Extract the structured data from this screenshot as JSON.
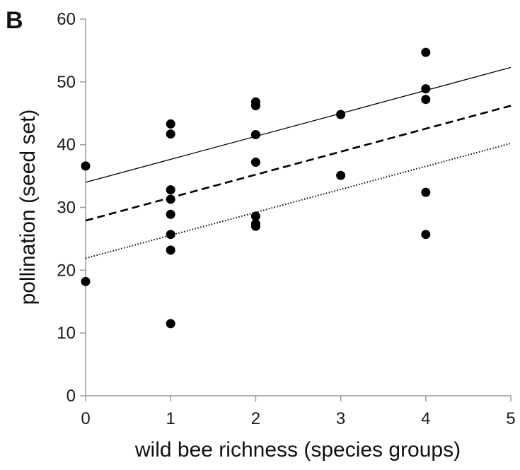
{
  "chart_data": {
    "type": "scatter",
    "panel_label": "B",
    "xlabel": "wild bee richness (species groups)",
    "ylabel": "pollination (seed set)",
    "xlim": [
      0,
      5
    ],
    "ylim": [
      0,
      60
    ],
    "x_ticks": [
      "0",
      "1",
      "2",
      "3",
      "4",
      "5"
    ],
    "y_ticks": [
      "0",
      "10",
      "20",
      "30",
      "40",
      "50",
      "60"
    ],
    "grid": false,
    "point_color": "#000000",
    "points": [
      {
        "x": 0,
        "y": 36.6
      },
      {
        "x": 0,
        "y": 18.2
      },
      {
        "x": 1,
        "y": 43.3
      },
      {
        "x": 1,
        "y": 41.7
      },
      {
        "x": 1,
        "y": 32.8
      },
      {
        "x": 1,
        "y": 31.3
      },
      {
        "x": 1,
        "y": 28.9
      },
      {
        "x": 1,
        "y": 25.7
      },
      {
        "x": 1,
        "y": 23.2
      },
      {
        "x": 1,
        "y": 11.5
      },
      {
        "x": 2,
        "y": 46.8
      },
      {
        "x": 2,
        "y": 46.2
      },
      {
        "x": 2,
        "y": 41.6
      },
      {
        "x": 2,
        "y": 37.2
      },
      {
        "x": 2,
        "y": 28.6
      },
      {
        "x": 2,
        "y": 27.4
      },
      {
        "x": 2,
        "y": 27.0
      },
      {
        "x": 3,
        "y": 44.8
      },
      {
        "x": 3,
        "y": 35.1
      },
      {
        "x": 4,
        "y": 54.7
      },
      {
        "x": 4,
        "y": 48.9
      },
      {
        "x": 4,
        "y": 47.2
      },
      {
        "x": 4,
        "y": 32.4
      },
      {
        "x": 4,
        "y": 25.7
      }
    ],
    "trend_lines": [
      {
        "style": "solid",
        "x0": 0,
        "y0": 34.0,
        "x1": 5,
        "y1": 52.3
      },
      {
        "style": "dashed",
        "x0": 0,
        "y0": 27.9,
        "x1": 5,
        "y1": 46.2
      },
      {
        "style": "dotted",
        "x0": 0,
        "y0": 21.9,
        "x1": 5,
        "y1": 40.2
      }
    ]
  }
}
